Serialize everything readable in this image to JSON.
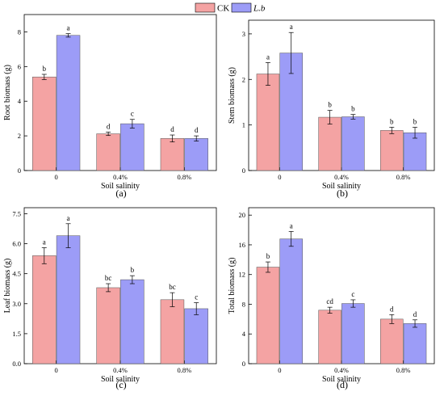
{
  "legend": {
    "position": "top-center",
    "items": [
      {
        "name": "CK",
        "italic": false,
        "color": "#F4A3A3"
      },
      {
        "name": "L.b",
        "italic": true,
        "color": "#9C9CF7"
      }
    ]
  },
  "chart_data": [
    {
      "type": "bar",
      "panel": "(a)",
      "xlabel": "Soil salinity",
      "ylabel": "Root biomass (g)",
      "categories": [
        "0",
        "0.4%",
        "0.8%"
      ],
      "ylim": [
        0,
        9
      ],
      "yticks": [
        0,
        2,
        4,
        6,
        8
      ],
      "ytick_labels": [
        "0",
        "2",
        "4",
        "6",
        "8"
      ],
      "grid": false,
      "series": [
        {
          "name": "CK",
          "values": [
            5.4,
            2.12,
            1.85
          ],
          "errors": [
            0.15,
            0.1,
            0.2
          ],
          "labels": [
            "b",
            "d",
            "d"
          ]
        },
        {
          "name": "L.b",
          "values": [
            7.8,
            2.7,
            1.85
          ],
          "errors": [
            0.1,
            0.25,
            0.15
          ],
          "labels": [
            "a",
            "c",
            "d"
          ]
        }
      ]
    },
    {
      "type": "bar",
      "panel": "(b)",
      "xlabel": "Soil salinity",
      "ylabel": "Stem biomass (g)",
      "categories": [
        "0",
        "0.4%",
        "0.8%"
      ],
      "ylim": [
        0,
        3.3
      ],
      "yticks": [
        0,
        1,
        2,
        3
      ],
      "ytick_labels": [
        "0",
        "1",
        "2",
        "3"
      ],
      "grid": false,
      "series": [
        {
          "name": "CK",
          "values": [
            2.12,
            1.17,
            0.88
          ],
          "errors": [
            0.25,
            0.15,
            0.07
          ],
          "labels": [
            "a",
            "b",
            "b"
          ]
        },
        {
          "name": "L.b",
          "values": [
            2.58,
            1.18,
            0.83
          ],
          "errors": [
            0.45,
            0.05,
            0.12
          ],
          "labels": [
            "a",
            "b",
            "b"
          ]
        }
      ]
    },
    {
      "type": "bar",
      "panel": "(c)",
      "xlabel": "Soil salinity",
      "ylabel": "Leaf biomass (g)",
      "categories": [
        "0",
        "0.4%",
        "0.8%"
      ],
      "ylim": [
        0,
        7.8
      ],
      "yticks": [
        0,
        1.5,
        3,
        4.5,
        6,
        7.5
      ],
      "ytick_labels": [
        "0.0",
        "1.5",
        "3.0",
        "4.5",
        "6.0",
        "7.5"
      ],
      "grid": false,
      "series": [
        {
          "name": "CK",
          "values": [
            5.4,
            3.8,
            3.2
          ],
          "errors": [
            0.4,
            0.2,
            0.35
          ],
          "labels": [
            "a",
            "bc",
            "bc"
          ]
        },
        {
          "name": "L.b",
          "values": [
            6.4,
            4.2,
            2.75
          ],
          "errors": [
            0.6,
            0.2,
            0.3
          ],
          "labels": [
            "a",
            "b",
            "c"
          ]
        }
      ]
    },
    {
      "type": "bar",
      "panel": "(d)",
      "xlabel": "Soil salinity",
      "ylabel": "Total biomass (g)",
      "categories": [
        "0",
        "0.4%",
        "0.8%"
      ],
      "ylim": [
        0,
        21
      ],
      "yticks": [
        0,
        4,
        8,
        12,
        16,
        20
      ],
      "ytick_labels": [
        "0",
        "4",
        "8",
        "12",
        "16",
        "20"
      ],
      "grid": false,
      "series": [
        {
          "name": "CK",
          "values": [
            13.0,
            7.2,
            6.0
          ],
          "errors": [
            0.7,
            0.4,
            0.6
          ],
          "labels": [
            "b",
            "cd",
            "d"
          ]
        },
        {
          "name": "L.b",
          "values": [
            16.8,
            8.1,
            5.4
          ],
          "errors": [
            1.0,
            0.5,
            0.5
          ],
          "labels": [
            "a",
            "c",
            "d"
          ]
        }
      ]
    }
  ]
}
